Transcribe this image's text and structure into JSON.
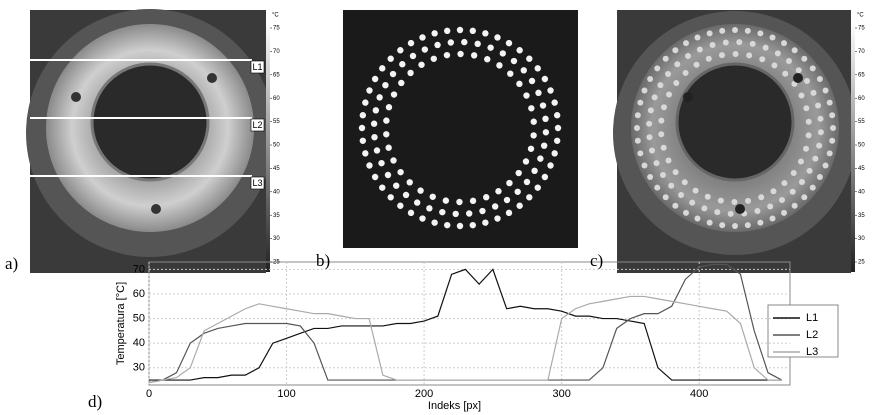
{
  "panels": {
    "a": {
      "label": "a)",
      "lines": [
        "L1",
        "L2",
        "L3"
      ],
      "colorbar": {
        "unit": "°C",
        "ticks": [
          75,
          70,
          65,
          60,
          55,
          50,
          45,
          40,
          35,
          30,
          25
        ]
      }
    },
    "b": {
      "label": "b)"
    },
    "c": {
      "label": "c)",
      "colorbar": {
        "unit": "°C",
        "ticks": [
          75,
          70,
          65,
          60,
          55,
          50,
          45,
          40,
          35,
          30,
          25
        ]
      }
    },
    "d": {
      "label": "d)"
    }
  },
  "chart_data": {
    "type": "line",
    "x_label": "Indeks [px]",
    "y_label": "Temperatura [°C]",
    "x": [
      0,
      10,
      20,
      30,
      40,
      50,
      60,
      70,
      80,
      90,
      100,
      110,
      120,
      130,
      140,
      150,
      160,
      170,
      180,
      190,
      200,
      210,
      220,
      230,
      240,
      250,
      260,
      270,
      280,
      290,
      300,
      310,
      320,
      330,
      340,
      350,
      360,
      370,
      380,
      390,
      400,
      410,
      420,
      430,
      440,
      450,
      460
    ],
    "series": [
      {
        "name": "L1",
        "color": "#111111",
        "values": [
          25,
          25,
          25,
          25,
          26,
          26,
          27,
          27,
          30,
          40,
          42,
          44,
          46,
          46,
          47,
          47,
          47,
          47,
          48,
          48,
          49,
          51,
          68,
          70,
          64,
          70,
          54,
          55,
          54,
          54,
          53,
          51,
          51,
          50,
          50,
          49,
          48,
          30,
          25,
          25,
          25,
          25,
          25,
          25,
          25,
          25,
          25
        ]
      },
      {
        "name": "L2",
        "color": "#555555",
        "values": [
          24,
          25,
          28,
          40,
          44,
          46,
          47,
          48,
          48,
          48,
          48,
          47,
          40,
          25,
          25,
          25,
          25,
          25,
          25,
          25,
          25,
          25,
          25,
          25,
          25,
          25,
          25,
          25,
          25,
          25,
          25,
          25,
          25,
          30,
          46,
          50,
          52,
          52,
          55,
          66,
          71,
          72,
          72,
          68,
          45,
          28,
          25
        ]
      },
      {
        "name": "L3",
        "color": "#aaaaaa",
        "values": [
          24,
          25,
          26,
          30,
          45,
          48,
          51,
          54,
          56,
          55,
          54,
          53,
          52,
          52,
          51,
          50,
          50,
          27,
          25,
          25,
          25,
          25,
          25,
          25,
          25,
          25,
          25,
          25,
          25,
          25,
          50,
          54,
          56,
          57,
          58,
          59,
          59,
          58,
          57,
          56,
          55,
          54,
          53,
          48,
          30,
          25,
          25
        ]
      }
    ],
    "xlim": [
      0,
      466
    ],
    "xticks": [
      0,
      100,
      200,
      300,
      400
    ],
    "ylim": [
      23,
      73
    ],
    "yticks": [
      30,
      40,
      50,
      60,
      70
    ],
    "grid": true,
    "legend": "right"
  }
}
